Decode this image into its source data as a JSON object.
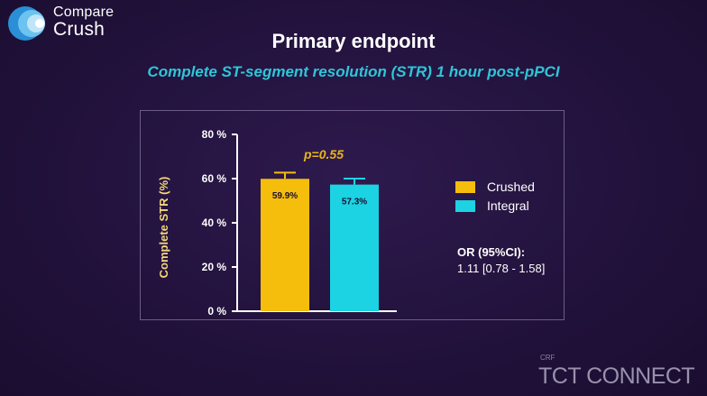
{
  "logo": {
    "line1": "Compare",
    "line2": "Crush"
  },
  "title": "Primary endpoint",
  "subtitle": "Complete ST-segment resolution (STR) 1 hour post-pPCI",
  "colors": {
    "crushed": "#f5bd0c",
    "integral": "#1bd3e3",
    "subtitle": "#2ec6d8",
    "pvalue": "#e8b51b"
  },
  "chart_data": {
    "type": "bar",
    "categories": [
      "Crushed",
      "Integral"
    ],
    "values": [
      59.9,
      57.3
    ],
    "error_upper": [
      62.7,
      60.0
    ],
    "data_labels": [
      "59.9%",
      "57.3%"
    ],
    "ylabel": "Complete STR  (%)",
    "ylim": [
      0,
      80
    ],
    "yticks": [
      0,
      20,
      40,
      60,
      80
    ],
    "ytick_labels": [
      "0 %",
      "20 %",
      "40 %",
      "60 %",
      "80 %"
    ],
    "annotation": "p=0.55",
    "legend": [
      "Crushed",
      "Integral"
    ],
    "legend_position": "right",
    "grid": false
  },
  "stats": {
    "or_label": "OR (95%CI):",
    "or_value": "1.11 [0.78 - 1.58]"
  },
  "footer": {
    "crf": "CRF",
    "brand": "TCT CONNECT"
  }
}
